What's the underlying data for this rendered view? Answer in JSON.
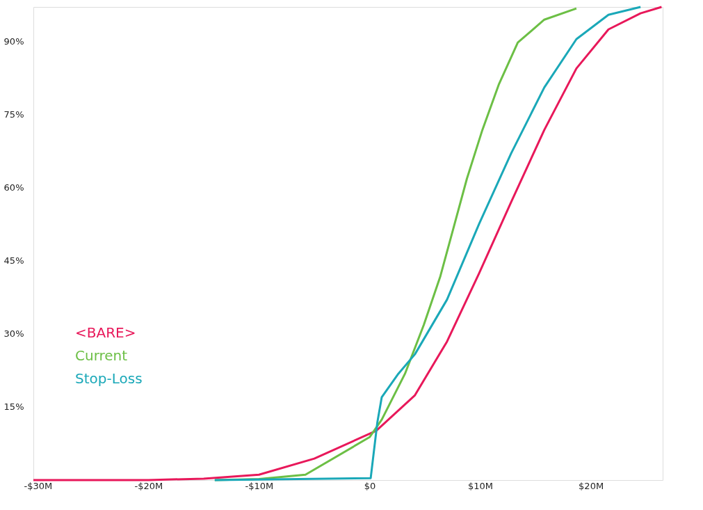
{
  "chart_data": {
    "type": "line",
    "xlim": [
      -30.4,
      26.5
    ],
    "ylim": [
      0,
      97
    ],
    "xticks": [
      {
        "value": -30,
        "label": "-$30M"
      },
      {
        "value": -20,
        "label": "-$20M"
      },
      {
        "value": -10,
        "label": "-$10M"
      },
      {
        "value": 0,
        "label": "$0"
      },
      {
        "value": 10,
        "label": "$10M"
      },
      {
        "value": 20,
        "label": "$20M"
      }
    ],
    "yticks": [
      {
        "value": 15,
        "label": "15%"
      },
      {
        "value": 30,
        "label": "30%"
      },
      {
        "value": 45,
        "label": "45%"
      },
      {
        "value": 60,
        "label": "60%"
      },
      {
        "value": 75,
        "label": "75%"
      },
      {
        "value": 90,
        "label": "90%"
      }
    ],
    "grid": false,
    "legend": "left",
    "marker": "none",
    "line_style": "solid",
    "series": [
      {
        "name": "<BARE>",
        "color": "#e8185a",
        "x": [
          -30.4,
          -20,
          -15,
          -10,
          -5,
          0,
          0.6,
          4.1,
          7.0,
          9.9,
          12.8,
          15.8,
          18.7,
          21.6,
          24.5,
          26.4
        ],
        "values": [
          0,
          0,
          0.3,
          1.1,
          4.4,
          9.5,
          10.1,
          17.4,
          28.4,
          42.4,
          57,
          71.8,
          84.4,
          92.4,
          95.7,
          97
        ]
      },
      {
        "name": "Current",
        "color": "#6cbf45",
        "x": [
          -14,
          -10,
          -5.8,
          0,
          1.1,
          3.2,
          4.9,
          6.4,
          7.6,
          8.8,
          10.2,
          11.7,
          13.4,
          15.8,
          18.7
        ],
        "values": [
          0,
          0.2,
          1.1,
          8.8,
          12.4,
          21.8,
          31.8,
          41.8,
          51.8,
          61.8,
          71.8,
          81.2,
          89.7,
          94.4,
          96.7
        ]
      },
      {
        "name": "Stop-Loss",
        "color": "#1aa8b8",
        "x": [
          -14,
          0.1,
          0.7,
          1.1,
          2.6,
          4.1,
          7.0,
          9.9,
          12.8,
          15.8,
          18.7,
          21.6,
          24.5
        ],
        "values": [
          0,
          0.4,
          11.8,
          17,
          21.8,
          25.8,
          37,
          52.5,
          67,
          80.5,
          90.4,
          95.4,
          97
        ]
      }
    ]
  }
}
